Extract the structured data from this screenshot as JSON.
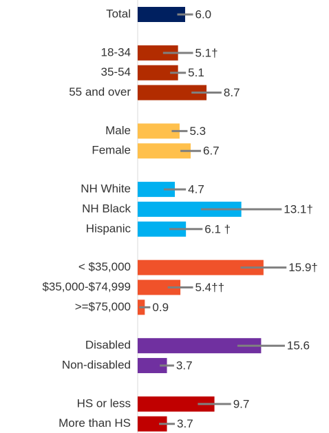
{
  "chart_data": {
    "type": "bar",
    "orientation": "horizontal",
    "xlim": [
      0,
      24
    ],
    "groups": [
      {
        "color": "#002060",
        "categories": [
          "Total"
        ],
        "values": [
          6.0
        ],
        "errors": [
          1.0
        ],
        "value_labels": [
          "6.0"
        ]
      },
      {
        "color": "#b22c00",
        "categories": [
          "18-34",
          "35-54",
          "55 and over"
        ],
        "values": [
          5.1,
          5.1,
          8.7
        ],
        "errors": [
          1.9,
          1.0,
          1.9
        ],
        "value_labels": [
          "5.1†",
          "5.1",
          "8.7"
        ]
      },
      {
        "color": "#ffc04c",
        "categories": [
          "Male",
          "Female"
        ],
        "values": [
          5.3,
          6.7
        ],
        "errors": [
          1.0,
          1.3
        ],
        "value_labels": [
          "5.3",
          "6.7"
        ]
      },
      {
        "color": "#00b0f0",
        "categories": [
          "NH White",
          "NH Black",
          "Hispanic"
        ],
        "values": [
          4.7,
          13.1,
          6.1
        ],
        "errors": [
          1.4,
          5.1,
          2.1
        ],
        "value_labels": [
          "4.7",
          "13.1†",
          "6.1 †"
        ]
      },
      {
        "color": "#f0522a",
        "categories": [
          "< $35,000",
          "$35,000-$74,999",
          ">=$75,000"
        ],
        "values": [
          15.9,
          5.4,
          0.9
        ],
        "errors": [
          2.9,
          1.6,
          0.7
        ],
        "value_labels": [
          "15.9†",
          "5.4††",
          "0.9"
        ]
      },
      {
        "color": "#7030a0",
        "categories": [
          "Disabled",
          "Non-disabled"
        ],
        "values": [
          15.6,
          3.7
        ],
        "errors": [
          3.0,
          0.9
        ],
        "value_labels": [
          "15.6",
          "3.7"
        ]
      },
      {
        "color": "#c00000",
        "categories": [
          "HS or less",
          "More than HS"
        ],
        "values": [
          9.7,
          3.7
        ],
        "errors": [
          2.1,
          1.0
        ],
        "value_labels": [
          "9.7",
          "3.7"
        ]
      }
    ]
  }
}
